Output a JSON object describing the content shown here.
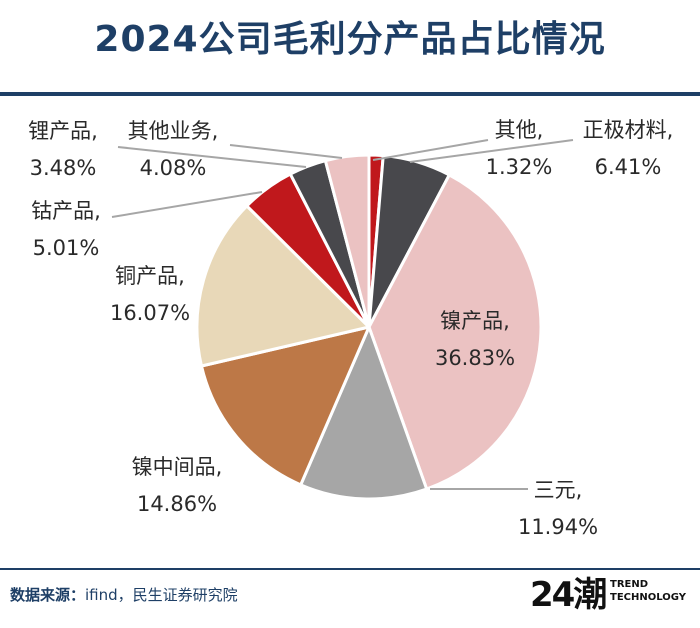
{
  "title": "2024公司毛利分产品占比情况",
  "source": {
    "label": "数据来源：",
    "text": "ifind，民生证券研究院"
  },
  "logo": {
    "mark": "24潮",
    "line1": "TREND",
    "line2": "TECHNOLOGY"
  },
  "chart_data": {
    "type": "pie",
    "title": "2024公司毛利分产品占比情况",
    "unit": "%",
    "start": "12 o'clock, clockwise",
    "slices": [
      {
        "name": "其他",
        "value": 1.32,
        "value_label": "1.32%",
        "color": "#c0181c"
      },
      {
        "name": "正极材料",
        "value": 6.41,
        "value_label": "6.41%",
        "color": "#48484c"
      },
      {
        "name": "镍产品",
        "value": 36.83,
        "value_label": "36.83%",
        "color": "#ebc2c2"
      },
      {
        "name": "三元",
        "value": 11.94,
        "value_label": "11.94%",
        "color": "#a6a6a6"
      },
      {
        "name": "镍中间品",
        "value": 14.86,
        "value_label": "14.86%",
        "color": "#bd7847"
      },
      {
        "name": "铜产品",
        "value": 16.07,
        "value_label": "16.07%",
        "color": "#e8d8b8"
      },
      {
        "name": "钴产品",
        "value": 5.01,
        "value_label": "5.01%",
        "color": "#c0181c"
      },
      {
        "name": "锂产品",
        "value": 3.48,
        "value_label": "3.48%",
        "color": "#48484c"
      },
      {
        "name": "其他业务",
        "value": 4.08,
        "value_label": "4.08%",
        "color": "#ebc2c2"
      }
    ]
  }
}
